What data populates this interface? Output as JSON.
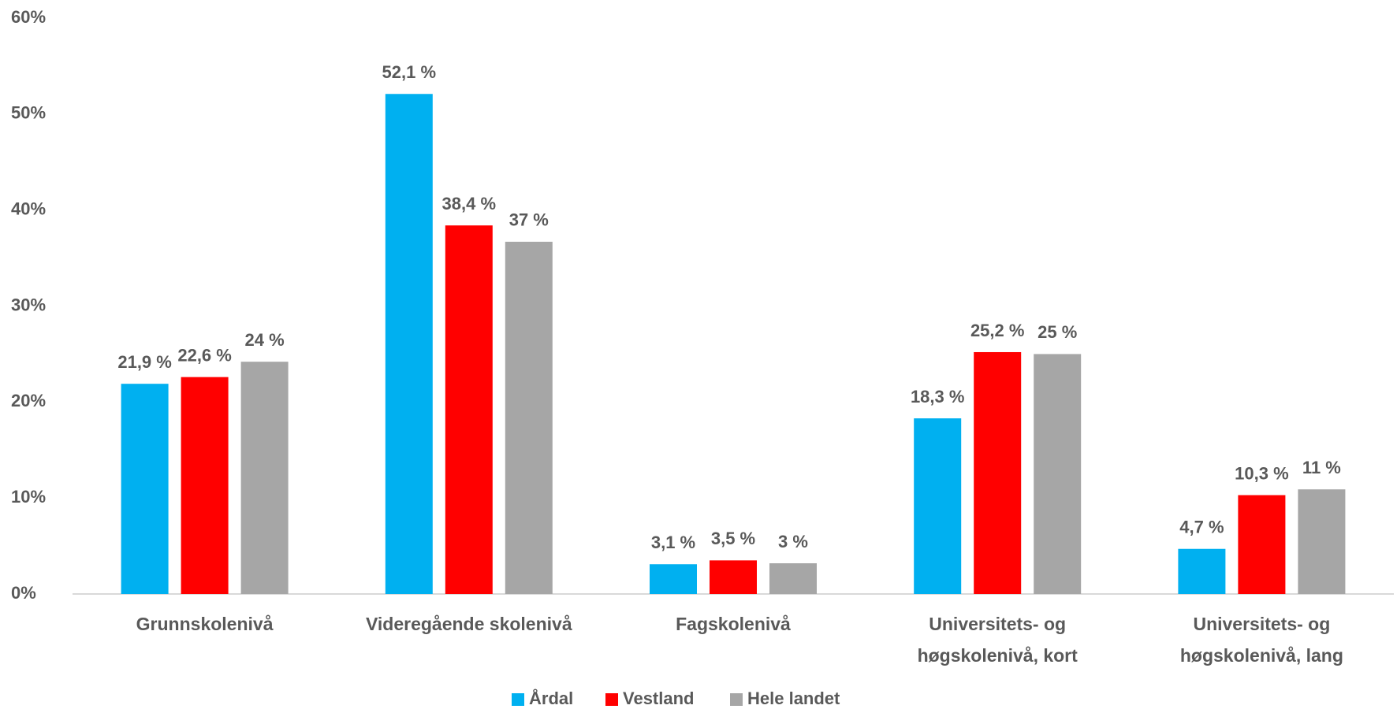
{
  "chart_data": {
    "type": "bar",
    "categories": [
      "Grunnskolenivå",
      "Videregående skolenivå",
      "Fagskolenivå",
      "Universitets- og høgskolenivå, kort",
      "Universitets- og høgskolenivå, lang"
    ],
    "series": [
      {
        "name": "Årdal",
        "color": "#00b0f0",
        "values": [
          21.9,
          52.1,
          3.1,
          18.3,
          4.7
        ],
        "value_labels": [
          "21,9 %",
          "52,1 %",
          "3,1 %",
          "18,3 %",
          "4,7 %"
        ]
      },
      {
        "name": "Vestland",
        "color": "#ff0000",
        "values": [
          22.6,
          38.4,
          3.5,
          25.2,
          10.3
        ],
        "value_labels": [
          "22,6 %",
          "38,4 %",
          "3,5 %",
          "25,2 %",
          "10,3 %"
        ]
      },
      {
        "name": "Hele landet",
        "color": "#a6a6a6",
        "values": [
          24.2,
          36.7,
          3.2,
          25,
          10.9
        ],
        "value_labels": [
          "24 %",
          "37 %",
          "3 %",
          "25 %",
          "11 %"
        ]
      }
    ],
    "ylim": [
      0,
      60
    ],
    "yticks": [
      {
        "value": 0,
        "label": "0%"
      },
      {
        "value": 10,
        "label": "10%"
      },
      {
        "value": 20,
        "label": "20%"
      },
      {
        "value": 30,
        "label": "30%"
      },
      {
        "value": 40,
        "label": "40%"
      },
      {
        "value": 50,
        "label": "50%"
      },
      {
        "value": 60,
        "label": "60%"
      }
    ],
    "grid": false,
    "legend": "bottom"
  }
}
